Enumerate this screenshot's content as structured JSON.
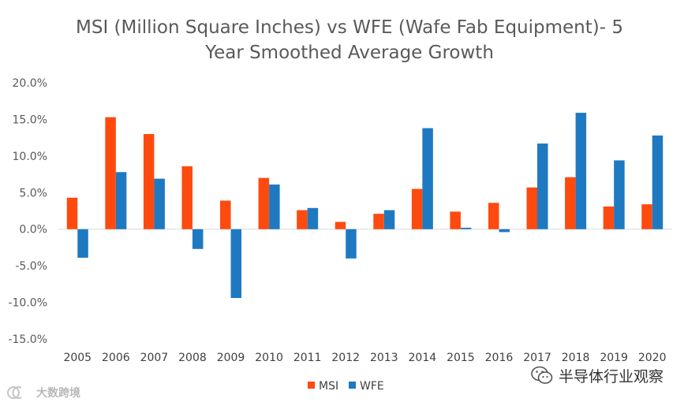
{
  "chart_data": {
    "type": "bar",
    "title_lines": [
      "MSI (Million Square Inches) vs WFE (Wafe Fab Equipment)- 5",
      "Year Smoothed Average Growth"
    ],
    "categories": [
      "2005",
      "2006",
      "2007",
      "2008",
      "2009",
      "2010",
      "2011",
      "2012",
      "2013",
      "2014",
      "2015",
      "2016",
      "2017",
      "2018",
      "2019",
      "2020"
    ],
    "series": [
      {
        "name": "MSI",
        "color": "#fe4a0f",
        "values": [
          4.3,
          15.3,
          13.0,
          8.6,
          3.9,
          7.0,
          2.6,
          1.0,
          2.1,
          5.5,
          2.4,
          3.6,
          5.7,
          7.1,
          3.1,
          3.4
        ]
      },
      {
        "name": "WFE",
        "color": "#1f79c1",
        "values": [
          -3.9,
          7.8,
          6.9,
          -2.7,
          -9.4,
          6.1,
          2.9,
          -4.0,
          2.6,
          13.8,
          0.2,
          -0.4,
          11.7,
          15.9,
          9.4,
          12.8
        ]
      }
    ],
    "ylim": [
      -15,
      20
    ],
    "yticks": [
      -15,
      -10,
      -5,
      0,
      5,
      10,
      15,
      20
    ],
    "ytick_labels": [
      "-15.0%",
      "-10.0%",
      "-5.0%",
      "0.0%",
      "5.0%",
      "10.0%",
      "15.0%",
      "20.0%"
    ],
    "xlabel": "",
    "ylabel": "",
    "legend_position": "bottom-center",
    "grid": false
  },
  "watermarks": {
    "right_text": "半导体行业观察",
    "right_icon": "wechat-icon",
    "left_text": "大数跨境",
    "left_icon": "cross-border-logo-icon"
  }
}
